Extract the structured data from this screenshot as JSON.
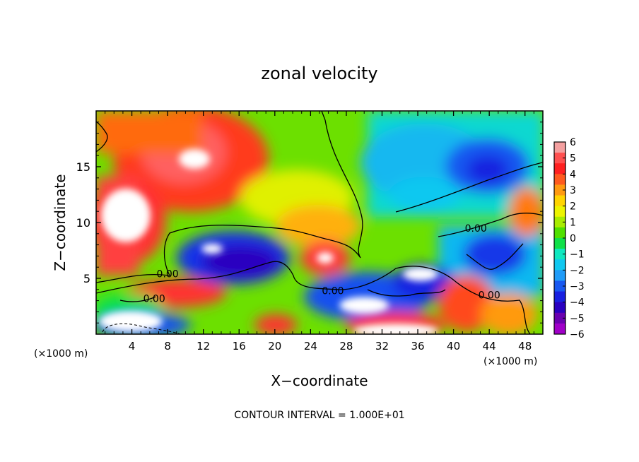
{
  "chart_data": {
    "type": "heatmap",
    "title": "zonal velocity",
    "xlabel": "X−coordinate",
    "ylabel": "Z−coordinate",
    "x_unit_label": "(×1000 m)",
    "y_unit_label": "(×1000 m)",
    "xlim": [
      0,
      50
    ],
    "ylim": [
      0,
      20
    ],
    "x_ticks": [
      4,
      8,
      12,
      16,
      20,
      24,
      28,
      32,
      36,
      40,
      44,
      48
    ],
    "y_ticks": [
      5,
      10,
      15
    ],
    "colorbar": {
      "ticks": [
        "6",
        "5",
        "4",
        "3",
        "2",
        "1",
        "0",
        "−1",
        "−2",
        "−3",
        "−4",
        "−5",
        "−6"
      ],
      "colors": [
        "#f4a0a0",
        "#ff5050",
        "#ff2020",
        "#ff5a1e",
        "#ff9a10",
        "#ffd400",
        "#ecf400",
        "#a8ec00",
        "#50e000",
        "#10e048",
        "#10e8c0",
        "#10c8f0",
        "#209cf8",
        "#1858f0",
        "#1820e0",
        "#2a00c0",
        "#6a00b0",
        "#a000c8"
      ]
    },
    "contour_labels": [
      {
        "text": "0.00",
        "x": 8.0,
        "z": 5.4
      },
      {
        "text": "0.00",
        "x": 6.5,
        "z": 3.2
      },
      {
        "text": "0.00",
        "x": 26.5,
        "z": 3.9
      },
      {
        "text": "0.00",
        "x": 42.5,
        "z": 9.5
      },
      {
        "text": "0.00",
        "x": 44.0,
        "z": 3.5
      }
    ],
    "footer": "CONTOUR INTERVAL = 1.000E+01"
  }
}
